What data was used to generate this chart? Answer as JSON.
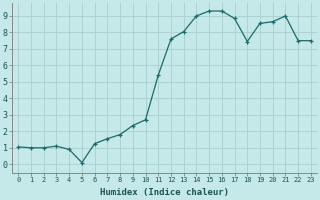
{
  "x": [
    0,
    1,
    2,
    3,
    4,
    5,
    6,
    7,
    8,
    9,
    10,
    11,
    12,
    13,
    14,
    15,
    16,
    17,
    18,
    19,
    20,
    21,
    22,
    23
  ],
  "y": [
    1.05,
    1.0,
    1.0,
    1.1,
    0.9,
    0.1,
    1.25,
    1.55,
    1.8,
    2.35,
    2.7,
    5.4,
    7.6,
    8.05,
    9.0,
    9.3,
    9.3,
    8.85,
    7.45,
    8.55,
    8.65,
    9.0,
    7.5,
    7.5
  ],
  "xlabel": "Humidex (Indice chaleur)",
  "bg_color": "#c5e8e8",
  "grid_color": "#aacece",
  "line_color": "#1a6b6b",
  "marker_color": "#1a6b6b",
  "xlim": [
    -0.5,
    23.5
  ],
  "ylim": [
    -0.5,
    9.8
  ],
  "xticks": [
    0,
    1,
    2,
    3,
    4,
    5,
    6,
    7,
    8,
    9,
    10,
    11,
    12,
    13,
    14,
    15,
    16,
    17,
    18,
    19,
    20,
    21,
    22,
    23
  ],
  "yticks": [
    0,
    1,
    2,
    3,
    4,
    5,
    6,
    7,
    8,
    9
  ],
  "xlabel_fontsize": 6.5,
  "tick_fontsize_x": 5.0,
  "tick_fontsize_y": 6.0
}
